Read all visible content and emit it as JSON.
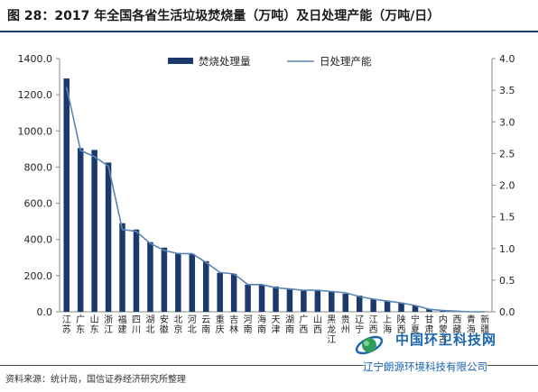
{
  "title": "图 28：2017 年全国各省生活垃圾焚烧量（万吨）及日处理产能（万吨/日）",
  "source": "资料来源：统计局，国信证券经济研究所整理",
  "watermark": {
    "title": "中国环卫科技网",
    "subtitle": "辽宁朗源环境科技有限公司",
    "logo_icon": "globe-ring-icon"
  },
  "colors": {
    "bar": "#1b3a6b",
    "line": "#5b86b6",
    "title_rule": "#1f3d6b",
    "watermark": "#1b66b3"
  },
  "chart_data": {
    "type": "bar",
    "categories": [
      "江苏",
      "广东",
      "山东",
      "浙江",
      "福建",
      "四川",
      "湖北",
      "安徽",
      "北京",
      "河北",
      "云南",
      "重庆",
      "吉林",
      "河南",
      "海南",
      "天津",
      "湖南",
      "广西",
      "山西",
      "黑龙江",
      "贵州",
      "辽宁",
      "江西",
      "上海",
      "陕西",
      "宁夏",
      "甘肃",
      "内蒙古",
      "西藏",
      "青海",
      "新疆"
    ],
    "series": [
      {
        "name": "焚烧处理量",
        "type": "bar",
        "axis": "left",
        "values": [
          1290,
          905,
          895,
          825,
          490,
          455,
          385,
          355,
          325,
          320,
          280,
          215,
          210,
          150,
          150,
          140,
          130,
          120,
          120,
          110,
          100,
          90,
          70,
          60,
          50,
          35,
          15,
          5,
          2,
          1,
          1
        ]
      },
      {
        "name": "日处理产能",
        "type": "line",
        "axis": "right",
        "values": [
          3.55,
          2.55,
          2.45,
          2.3,
          1.3,
          1.27,
          1.08,
          0.97,
          0.92,
          0.92,
          0.78,
          0.62,
          0.6,
          0.43,
          0.43,
          0.38,
          0.36,
          0.34,
          0.34,
          0.32,
          0.3,
          0.24,
          0.2,
          0.17,
          0.14,
          0.1,
          0.04,
          0.02,
          0.01,
          0.0,
          0.0
        ]
      }
    ],
    "y_left": {
      "ylim": [
        0,
        1400
      ],
      "ticks": [
        "0.0",
        "200.0",
        "400.0",
        "600.0",
        "800.0",
        "1000.0",
        "1200.0",
        "1400.0"
      ]
    },
    "y_right": {
      "ylim": [
        0,
        4
      ],
      "ticks": [
        "0.0",
        "0.5",
        "1.0",
        "1.5",
        "2.0",
        "2.5",
        "3.0",
        "3.5",
        "4.0"
      ]
    },
    "grid": false,
    "legend_position": "top-center"
  }
}
